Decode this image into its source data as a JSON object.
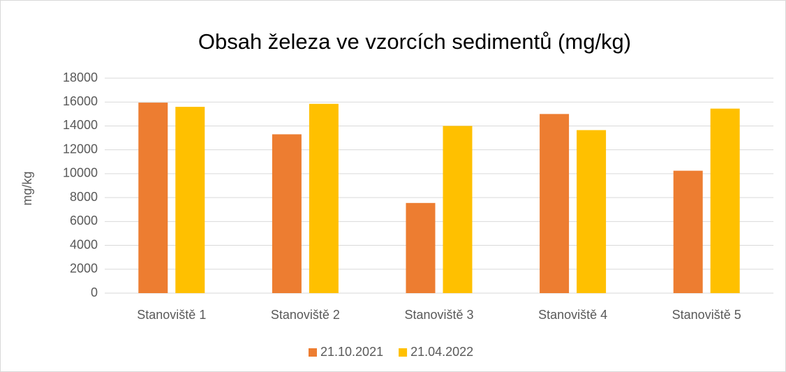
{
  "chart_data": {
    "type": "bar",
    "title": "Obsah železa ve vzorcích sedimentů (mg/kg)",
    "ylabel": "mg/kg",
    "categories": [
      "Stanoviště 1",
      "Stanoviště 2",
      "Stanoviště 3",
      "Stanoviště 4",
      "Stanoviště 5"
    ],
    "series": [
      {
        "name": "21.10.2021",
        "color": "#ED7D31",
        "values": [
          15950,
          13300,
          7550,
          15000,
          10250
        ]
      },
      {
        "name": "21.04.2022",
        "color": "#FFC000",
        "values": [
          15600,
          15850,
          14000,
          13650,
          15450
        ]
      }
    ],
    "ylim": [
      0,
      18000
    ],
    "yticks": [
      0,
      2000,
      4000,
      6000,
      8000,
      10000,
      12000,
      14000,
      16000,
      18000
    ],
    "grid": true,
    "legend": "bottom"
  }
}
